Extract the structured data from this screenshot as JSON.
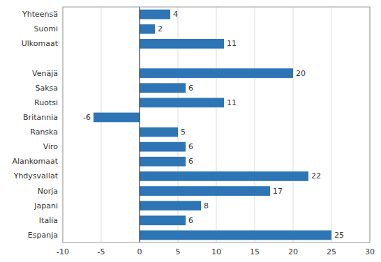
{
  "chart_data": {
    "type": "bar",
    "orientation": "horizontal",
    "categories": [
      "Yhteensä",
      "Suomi",
      "Ulkomaat",
      null,
      "Venäjä",
      "Saksa",
      "Ruotsi",
      "Britannia",
      "Ranska",
      "Viro",
      "Alankomaat",
      "Yhdysvallat",
      "Norja",
      "Japani",
      "Italia",
      "Espanja"
    ],
    "values": [
      4,
      2,
      11,
      null,
      20,
      6,
      11,
      -6,
      5,
      6,
      6,
      22,
      17,
      8,
      6,
      25
    ],
    "color": "#2E75B6",
    "xlim": [
      -10,
      30
    ],
    "xticks": [
      -10,
      -5,
      0,
      5,
      10,
      15,
      20,
      25,
      30
    ],
    "grid": true,
    "data_labels": true
  }
}
